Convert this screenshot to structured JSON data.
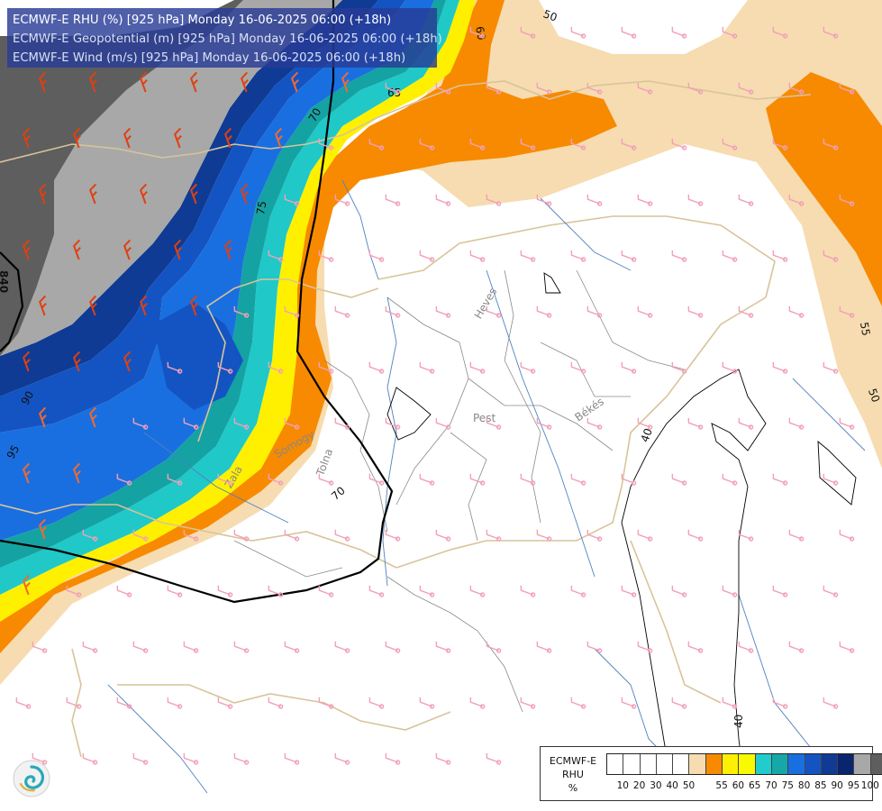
{
  "header": {
    "line1": "ECMWF-E RHU (%) [925 hPa] Monday 16-06-2025 06:00 (+18h)",
    "line2": "ECMWF-E Geopotential (m) [925 hPa] Monday 16-06-2025 06:00 (+18h)",
    "line3": "ECMWF-E Wind (m/s) [925 hPa] Monday 16-06-2025 06:00 (+18h)"
  },
  "legend": {
    "model": "ECMWF-E",
    "var": "RHU",
    "unit": "%",
    "colors": [
      "#ffffff",
      "#ffffff",
      "#ffffff",
      "#ffffff",
      "#ffffff",
      "#f6dcb0",
      "#f78a00",
      "#ffef00",
      "#f9f900",
      "#22cccc",
      "#16a8a8",
      "#1a6fe0",
      "#1454c2",
      "#0f3b94",
      "#0a246e",
      "#a8a8a8",
      "#5e5e5e"
    ],
    "ticks": [
      "10",
      "20",
      "30",
      "40",
      "50",
      "55",
      "60",
      "65",
      "70",
      "75",
      "80",
      "85",
      "90",
      "95",
      "100"
    ]
  },
  "contour_labels": {
    "geo_840": "840",
    "rhu_50_top": "50",
    "rhu_60_top": "60",
    "rhu_65": "65",
    "rhu_70": "70",
    "rhu_75": "75",
    "rhu_90": "90",
    "rhu_95": "95",
    "rhu_55_right": "55",
    "rhu_50_right": "50",
    "rhu_40_mid": "40",
    "rhu_40_bottom": "40",
    "rhu_70_lower": "70"
  },
  "places": {
    "heves": "Heves",
    "pest": "Pest",
    "bekes": "Békés",
    "tolna": "Tolna",
    "somogy": "Somogy",
    "zala": "Zala"
  },
  "icons": {
    "logo": "swirl-logo-icon",
    "barb": "wind-barb-icon"
  }
}
